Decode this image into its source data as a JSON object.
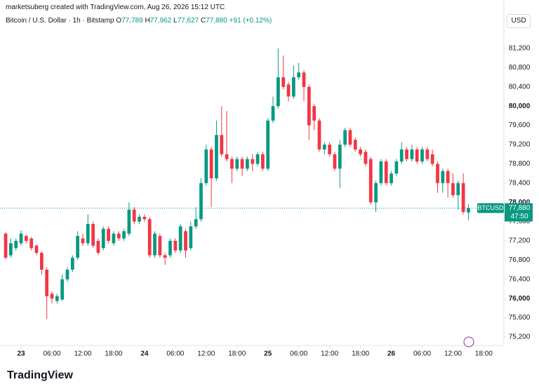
{
  "header": {
    "created": "marketsuberg created with TradingView.com, Aug 26, 2026 15:12 UTC",
    "symbol": "Bitcoin / U.S. Dollar · 1h · Bitstamp",
    "ohlc": [
      {
        "key": "O",
        "value": "77,789"
      },
      {
        "key": "H",
        "value": "77,962"
      },
      {
        "key": "L",
        "value": "77,627"
      },
      {
        "key": "C",
        "value": "77,880"
      }
    ],
    "change": "+91 (+0.12%)",
    "currency": "USD",
    "logo": "TradingView"
  },
  "chart_data": {
    "type": "candlestick",
    "up_color": "#089981",
    "down_color": "#f23645",
    "grid": false,
    "open": [
      77350,
      76900,
      77050,
      77150,
      77300,
      77250,
      77100,
      76950,
      76600,
      76100,
      75950,
      75980,
      76400,
      76600,
      76850,
      77250,
      77150,
      77550,
      77200,
      77050,
      77450,
      77150,
      77350,
      77250,
      77350,
      77850,
      77600,
      77700,
      77650,
      76900,
      77300,
      76900,
      76900,
      77200,
      77000,
      77400,
      77050,
      77500,
      77650,
      78400,
      79100,
      78500,
      79400,
      79000,
      78900,
      78700,
      78900,
      78700,
      78900,
      78800,
      79000,
      78700,
      79700,
      80000,
      80600,
      80450,
      80200,
      80600,
      80700,
      80400,
      80000,
      79700,
      79100,
      79200,
      79000,
      78700,
      79200,
      79500,
      79300,
      79100,
      79050,
      78900,
      78000,
      78400,
      78850,
      78400,
      78600,
      78850,
      79100,
      78900,
      79100,
      78850,
      79100,
      79000,
      78800,
      78400,
      78650,
      78400,
      78150,
      78400,
      77789
    ],
    "high": [
      77380,
      77250,
      77250,
      77420,
      77330,
      77280,
      77120,
      76980,
      76650,
      76150,
      76100,
      76500,
      76650,
      76900,
      77400,
      77350,
      77750,
      77600,
      77250,
      77500,
      77500,
      77400,
      77400,
      77450,
      78000,
      77900,
      77750,
      77750,
      77700,
      77400,
      77350,
      76950,
      77250,
      77250,
      77550,
      77450,
      77600,
      77900,
      78500,
      79200,
      79150,
      79700,
      80000,
      79900,
      78950,
      78950,
      78950,
      78950,
      79000,
      79050,
      79050,
      79750,
      80200,
      81200,
      81050,
      80500,
      80850,
      80900,
      80750,
      80450,
      80050,
      79750,
      79250,
      79250,
      79050,
      79300,
      79550,
      79550,
      79350,
      79150,
      79100,
      78950,
      78450,
      78900,
      78900,
      78650,
      78900,
      79250,
      79150,
      79200,
      79150,
      79150,
      79150,
      79100,
      78850,
      78700,
      78700,
      78600,
      78450,
      78600,
      77962
    ],
    "low": [
      76820,
      76850,
      77000,
      77100,
      77150,
      77000,
      76900,
      76500,
      75580,
      75900,
      75900,
      75950,
      76350,
      76550,
      76800,
      77100,
      77100,
      77050,
      76900,
      77000,
      77150,
      77100,
      77200,
      77200,
      77300,
      77550,
      77550,
      77600,
      76850,
      76850,
      76850,
      76700,
      76850,
      76950,
      76950,
      76850,
      77000,
      77450,
      77600,
      78350,
      77900,
      78450,
      78950,
      78850,
      78400,
      78650,
      78550,
      78650,
      78650,
      78750,
      78650,
      78650,
      79650,
      79950,
      80350,
      80100,
      80150,
      80550,
      80100,
      79300,
      79500,
      79050,
      79000,
      78950,
      78650,
      78300,
      79150,
      79150,
      79050,
      78950,
      78750,
      77950,
      77800,
      78350,
      78350,
      78350,
      78550,
      78800,
      78850,
      78850,
      78800,
      78800,
      78850,
      78750,
      78200,
      78200,
      78100,
      78100,
      77850,
      77750,
      77627
    ],
    "close": [
      76850,
      77150,
      77200,
      77350,
      77200,
      77050,
      76950,
      76600,
      76050,
      76000,
      76050,
      76400,
      76600,
      76850,
      77300,
      77150,
      77550,
      77100,
      76950,
      77450,
      77200,
      77350,
      77250,
      77400,
      77850,
      77600,
      77700,
      77650,
      76900,
      77350,
      76900,
      76850,
      77200,
      77000,
      77500,
      77000,
      77500,
      77650,
      78400,
      79100,
      78500,
      79400,
      79000,
      78900,
      78700,
      78900,
      78700,
      78900,
      78800,
      79000,
      78700,
      79700,
      80000,
      80600,
      80400,
      80200,
      80600,
      80700,
      80400,
      79600,
      79700,
      79100,
      79200,
      79000,
      78700,
      79200,
      79500,
      79200,
      79100,
      79000,
      78800,
      78000,
      78400,
      78850,
      78400,
      78600,
      78850,
      79100,
      78900,
      79100,
      78850,
      79100,
      78900,
      78800,
      78400,
      78650,
      78400,
      78150,
      78400,
      77800,
      77880
    ],
    "last_price": 77880,
    "price_label": {
      "symbol": "BTCUSD",
      "price": "77,880",
      "countdown": "47:50"
    },
    "xlim": [
      -1.1,
      96.9
    ],
    "xticks": [
      {
        "value": 3,
        "label": "23"
      },
      {
        "value": 9,
        "label": "06:00"
      },
      {
        "value": 15,
        "label": "12:00"
      },
      {
        "value": 21,
        "label": "18:00"
      },
      {
        "value": 27,
        "label": "24"
      },
      {
        "value": 33,
        "label": "06:00"
      },
      {
        "value": 39,
        "label": "12:00"
      },
      {
        "value": 45,
        "label": "18:00"
      },
      {
        "value": 51,
        "label": "25"
      },
      {
        "value": 57,
        "label": "06:00"
      },
      {
        "value": 63,
        "label": "12:00"
      },
      {
        "value": 69,
        "label": "18:00"
      },
      {
        "value": 75,
        "label": "26"
      },
      {
        "value": 81,
        "label": "06:00"
      },
      {
        "value": 87,
        "label": "12:00"
      },
      {
        "value": 93,
        "label": "18:00"
      }
    ],
    "ylim": [
      75025,
      81506
    ],
    "yticks": [
      {
        "value": 75200,
        "label": "75,200"
      },
      {
        "value": 75600,
        "label": "75,600"
      },
      {
        "value": 76000,
        "label": "76,000"
      },
      {
        "value": 76400,
        "label": "76,400"
      },
      {
        "value": 76800,
        "label": "76,800"
      },
      {
        "value": 77200,
        "label": "77,200"
      },
      {
        "value": 77600,
        "label": "77,600"
      },
      {
        "value": 78000,
        "label": "78,000"
      },
      {
        "value": 78400,
        "label": "78,400"
      },
      {
        "value": 78800,
        "label": "78,800"
      },
      {
        "value": 79200,
        "label": "79,200"
      },
      {
        "value": 79600,
        "label": "79,600"
      },
      {
        "value": 80000,
        "label": "80,000"
      },
      {
        "value": 80400,
        "label": "80,400"
      },
      {
        "value": 80800,
        "label": "80,800"
      },
      {
        "value": 81200,
        "label": "81,200"
      }
    ]
  }
}
